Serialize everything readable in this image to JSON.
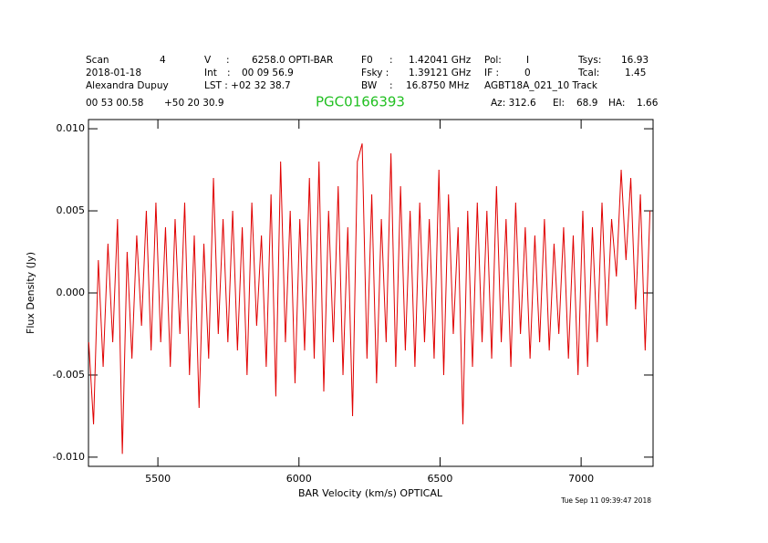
{
  "chart_data": {
    "type": "line",
    "header_rows": [
      [
        "Scan",
        "4",
        "V",
        ":",
        "6258.0 OPTI-BAR",
        "F0",
        ":",
        "1.42041 GHz",
        "Pol:",
        "I",
        "Tsys:",
        "16.93"
      ],
      [
        "2018-01-18",
        "Int",
        ":",
        "00 09 56.9",
        "Fsky :",
        "1.39121 GHz",
        "IF :",
        "0",
        "Tcal:",
        "1.45"
      ],
      [
        "Alexandra Dupuy",
        "LST : +02 32 38.7",
        "BW",
        ":",
        "16.8750 MHz",
        "AGBT18A_021_10 Track"
      ],
      [
        "00 53 00.58",
        "+50 20 30.9",
        "Az: 312.6",
        "El:",
        "68.9",
        "HA:",
        "1.66"
      ]
    ],
    "title": "PGC0166393",
    "xlabel": "BAR Velocity (km/s) OPTICAL",
    "ylabel": "Flux Density (Jy)",
    "timestamp": "Tue Sep 11 09:39:47 2018",
    "xlim": [
      5254,
      7255
    ],
    "ylim": [
      -0.01056,
      0.01056
    ],
    "xticks": [
      5500,
      6000,
      6500,
      7000
    ],
    "yticks": [
      {
        "value": 0.01,
        "label": "0.010"
      },
      0.005,
      {
        "value": 0,
        "label": "0.000"
      },
      -0.005,
      {
        "value": -0.01,
        "label": "-0.010"
      }
    ],
    "x": [
      5255,
      5272,
      5289,
      5306,
      5323,
      5340,
      5357,
      5374,
      5391,
      5408,
      5425,
      5442,
      5459,
      5476,
      5493,
      5510,
      5527,
      5544,
      5561,
      5578,
      5595,
      5612,
      5629,
      5646,
      5663,
      5680,
      5697,
      5714,
      5731,
      5748,
      5765,
      5782,
      5799,
      5816,
      5833,
      5850,
      5867,
      5884,
      5901,
      5918,
      5935,
      5952,
      5969,
      5986,
      6003,
      6020,
      6037,
      6054,
      6071,
      6088,
      6105,
      6122,
      6139,
      6156,
      6173,
      6190,
      6207,
      6224,
      6241,
      6258,
      6275,
      6292,
      6309,
      6326,
      6343,
      6360,
      6377,
      6394,
      6411,
      6428,
      6445,
      6462,
      6479,
      6496,
      6513,
      6530,
      6547,
      6564,
      6581,
      6598,
      6615,
      6632,
      6649,
      6666,
      6683,
      6700,
      6717,
      6734,
      6751,
      6768,
      6785,
      6802,
      6819,
      6836,
      6853,
      6870,
      6887,
      6904,
      6921,
      6938,
      6955,
      6972,
      6989,
      7006,
      7023,
      7040,
      7057,
      7074,
      7091,
      7108,
      7125,
      7142,
      7159,
      7176,
      7193,
      7210,
      7227,
      7244
    ],
    "series": [
      {
        "color": "#e00000",
        "values": [
          -0.003,
          -0.008,
          0.002,
          -0.0045,
          0.003,
          -0.003,
          0.0045,
          -0.0098,
          0.0025,
          -0.004,
          0.0035,
          -0.002,
          0.005,
          -0.0035,
          0.0055,
          -0.003,
          0.004,
          -0.0045,
          0.0045,
          -0.0025,
          0.0055,
          -0.005,
          0.0035,
          -0.007,
          0.003,
          -0.004,
          0.007,
          -0.0025,
          0.0045,
          -0.003,
          0.005,
          -0.0035,
          0.004,
          -0.005,
          0.0055,
          -0.002,
          0.0035,
          -0.0045,
          0.006,
          -0.0063,
          0.008,
          -0.003,
          0.005,
          -0.0055,
          0.0045,
          -0.0035,
          0.007,
          -0.004,
          0.008,
          -0.006,
          0.005,
          -0.003,
          0.0065,
          -0.005,
          0.004,
          -0.0075,
          0.008,
          0.0091,
          -0.004,
          0.006,
          -0.0055,
          0.0045,
          -0.003,
          0.0085,
          -0.0045,
          0.0065,
          -0.0035,
          0.005,
          -0.0045,
          0.0055,
          -0.003,
          0.0045,
          -0.004,
          0.0075,
          -0.005,
          0.006,
          -0.0025,
          0.004,
          -0.008,
          0.005,
          -0.0045,
          0.0055,
          -0.003,
          0.005,
          -0.004,
          0.0065,
          -0.003,
          0.0045,
          -0.0045,
          0.0055,
          -0.0025,
          0.004,
          -0.004,
          0.0035,
          -0.003,
          0.0045,
          -0.0035,
          0.003,
          -0.0025,
          0.004,
          -0.004,
          0.0035,
          -0.005,
          0.005,
          -0.0045,
          0.004,
          -0.003,
          0.0055,
          -0.002,
          0.0045,
          0.001,
          0.0075,
          0.002,
          0.007,
          -0.001,
          0.006,
          -0.0035,
          0.005
        ]
      }
    ]
  }
}
